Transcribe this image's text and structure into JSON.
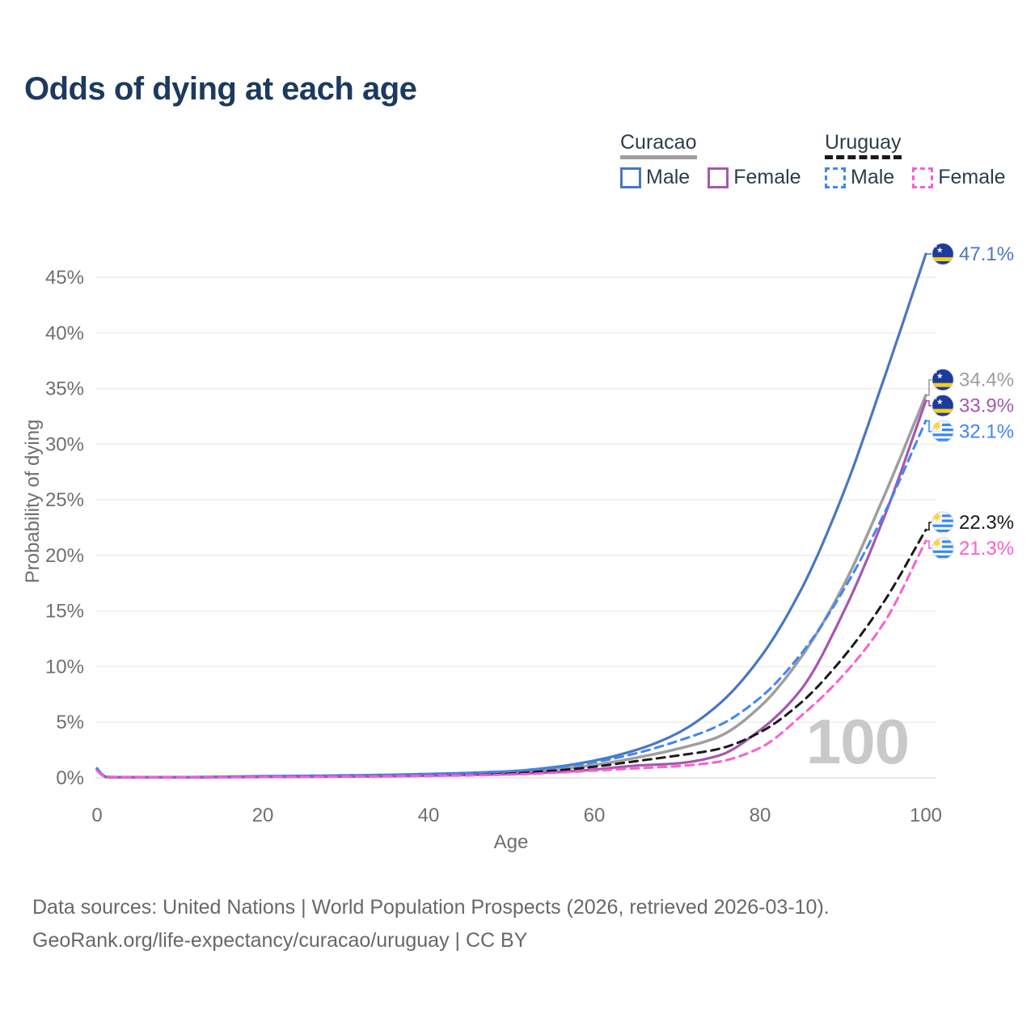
{
  "title": "Odds of dying at each age",
  "legend": {
    "groups": [
      {
        "id": "curacao",
        "label": "Curacao",
        "line_style": "solid",
        "line_color": "#9a9a9a",
        "items": [
          {
            "label": "Male",
            "color": "#4878bf",
            "style": "solid"
          },
          {
            "label": "Female",
            "color": "#a558af",
            "style": "solid"
          }
        ]
      },
      {
        "id": "uruguay",
        "label": "Uruguay",
        "line_style": "dashed",
        "line_color": "#141414",
        "items": [
          {
            "label": "Male",
            "color": "#4285f4",
            "style": "dashed"
          },
          {
            "label": "Female",
            "color": "#fa5fd1",
            "style": "dashed"
          }
        ]
      }
    ]
  },
  "chart_data": {
    "type": "line",
    "title": "Odds of dying at each age",
    "xlabel": "Age",
    "ylabel": "Probability of dying",
    "xlim": [
      0,
      100
    ],
    "ylim": [
      0,
      47.5
    ],
    "grid": true,
    "legend_position": "top-right",
    "watermark": "100",
    "x_ticks": [
      {
        "value": 0,
        "label": "0"
      },
      {
        "value": 20,
        "label": "20"
      },
      {
        "value": 40,
        "label": "40"
      },
      {
        "value": 60,
        "label": "60"
      },
      {
        "value": 80,
        "label": "80"
      },
      {
        "value": 100,
        "label": "100"
      }
    ],
    "y_ticks": [
      {
        "value": 0,
        "label": "0%"
      },
      {
        "value": 5,
        "label": "5%"
      },
      {
        "value": 10,
        "label": "10%"
      },
      {
        "value": 15,
        "label": "15%"
      },
      {
        "value": 20,
        "label": "20%"
      },
      {
        "value": 25,
        "label": "25%"
      },
      {
        "value": 30,
        "label": "30%"
      },
      {
        "value": 35,
        "label": "35%"
      },
      {
        "value": 40,
        "label": "40%"
      },
      {
        "value": 45,
        "label": "45%"
      }
    ],
    "ages": [
      0,
      1,
      2,
      5,
      10,
      15,
      20,
      25,
      30,
      35,
      40,
      45,
      50,
      55,
      60,
      65,
      70,
      75,
      80,
      85,
      90,
      95,
      100
    ],
    "series": [
      {
        "name": "Curacao",
        "country": "curacao",
        "sex": "both",
        "style": "solid",
        "color": "#9e9e9e",
        "width": 3.5,
        "flag": "curacao",
        "end_label": "34.4%",
        "values": [
          0.78,
          0.09,
          0.06,
          0.05,
          0.05,
          0.08,
          0.11,
          0.14,
          0.16,
          0.2,
          0.27,
          0.36,
          0.5,
          0.75,
          1.15,
          1.8,
          2.6,
          3.7,
          6.4,
          10.9,
          17.2,
          25.4,
          34.4
        ]
      },
      {
        "name": "Curacao Male",
        "country": "curacao",
        "sex": "male",
        "style": "solid",
        "color": "#4878bf",
        "width": 3.2,
        "flag": "curacao",
        "end_label": "47.1%",
        "values": [
          0.85,
          0.1,
          0.07,
          0.06,
          0.06,
          0.1,
          0.15,
          0.18,
          0.22,
          0.27,
          0.35,
          0.45,
          0.6,
          0.95,
          1.55,
          2.5,
          4.0,
          6.6,
          10.8,
          17.0,
          25.5,
          36.0,
          47.1
        ]
      },
      {
        "name": "Curacao Female",
        "country": "curacao",
        "sex": "female",
        "style": "solid",
        "color": "#a558af",
        "width": 3.2,
        "flag": "curacao",
        "end_label": "33.9%",
        "values": [
          0.7,
          0.08,
          0.05,
          0.04,
          0.04,
          0.06,
          0.08,
          0.1,
          0.12,
          0.15,
          0.2,
          0.26,
          0.35,
          0.5,
          0.75,
          1.1,
          1.3,
          2.0,
          4.3,
          8.0,
          14.8,
          23.5,
          33.9
        ]
      },
      {
        "name": "Uruguay",
        "country": "uruguay",
        "sex": "both",
        "style": "dashed",
        "color": "#1a1a1a",
        "width": 3.0,
        "flag": "uruguay",
        "end_label": "22.3%",
        "values": [
          0.75,
          0.08,
          0.05,
          0.04,
          0.04,
          0.07,
          0.1,
          0.13,
          0.15,
          0.19,
          0.24,
          0.32,
          0.45,
          0.65,
          1.0,
          1.5,
          2.0,
          2.6,
          4.1,
          6.8,
          10.8,
          15.9,
          22.3
        ]
      },
      {
        "name": "Uruguay Male",
        "country": "uruguay",
        "sex": "male",
        "style": "dashed",
        "color": "#4285f4",
        "width": 3.0,
        "flag": "uruguay",
        "end_label": "32.1%",
        "values": [
          0.8,
          0.09,
          0.06,
          0.05,
          0.05,
          0.09,
          0.14,
          0.17,
          0.21,
          0.26,
          0.33,
          0.44,
          0.6,
          0.9,
          1.4,
          2.2,
          3.3,
          4.7,
          7.2,
          11.2,
          16.8,
          23.8,
          32.1
        ]
      },
      {
        "name": "Uruguay Female",
        "country": "uruguay",
        "sex": "female",
        "style": "dashed",
        "color": "#fa5fd1",
        "width": 3.0,
        "flag": "uruguay",
        "end_label": "21.3%",
        "values": [
          0.65,
          0.07,
          0.05,
          0.04,
          0.04,
          0.06,
          0.07,
          0.09,
          0.11,
          0.13,
          0.17,
          0.22,
          0.3,
          0.45,
          0.65,
          0.85,
          1.05,
          1.45,
          2.7,
          5.6,
          9.2,
          14.0,
          21.3
        ]
      }
    ]
  },
  "footer": {
    "line1": "Data sources: United Nations | World Population Prospects (2026, retrieved 2026-03-10).",
    "line2": "GeoRank.org/life-expectancy/curacao/uruguay | CC BY"
  }
}
